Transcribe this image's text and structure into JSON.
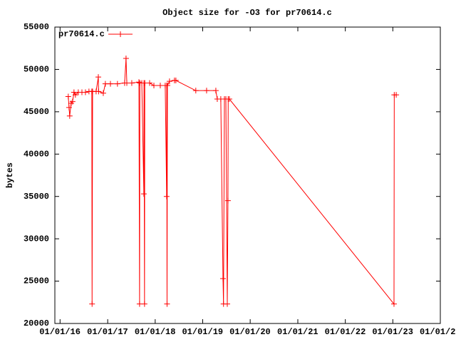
{
  "chart_data": {
    "type": "line",
    "title": "Object size for -O3 for pr70614.c",
    "y_label": "bytes",
    "legend": "top-left",
    "series": [
      {
        "name": "pr70614.c",
        "color": "#ff0000",
        "x": [
          "2016-03-04",
          "2016-03-10",
          "2016-03-15",
          "2016-03-26",
          "2016-04-06",
          "2016-04-17",
          "2016-04-28",
          "2016-05-20",
          "2016-06-17",
          "2016-07-14",
          "2016-08-10",
          "2016-09-01",
          "2016-09-03",
          "2016-09-07",
          "2016-10-04",
          "2016-10-21",
          "2016-10-23",
          "2016-11-28",
          "2016-12-14",
          "2017-01-22",
          "2017-03-17",
          "2017-05-11",
          "2017-05-22",
          "2017-05-28",
          "2017-07-05",
          "2017-08-29",
          "2017-09-03",
          "2017-09-05",
          "2017-09-20",
          "2017-10-06",
          "2017-10-07",
          "2017-10-11",
          "2017-10-13",
          "2017-11-19",
          "2017-12-22",
          "2018-02-09",
          "2018-03-19",
          "2018-03-30",
          "2018-03-31",
          "2018-04-02",
          "2018-04-05",
          "2018-04-21",
          "2018-05-29",
          "2018-06-09",
          "2018-11-09",
          "2019-01-31",
          "2019-04-12",
          "2019-04-23",
          "2019-05-20",
          "2019-06-06",
          "2019-06-10",
          "2019-06-17",
          "2019-06-28",
          "2019-07-09",
          "2019-07-14",
          "2019-07-16",
          "2019-07-25",
          "2023-01-10",
          "2023-01-12",
          "2023-01-27"
        ],
        "values": [
          46800,
          45500,
          44500,
          46000,
          46200,
          47300,
          47000,
          47300,
          47300,
          47300,
          47400,
          47400,
          22300,
          47400,
          47400,
          49100,
          47400,
          47200,
          48300,
          48300,
          48300,
          48400,
          51300,
          48400,
          48400,
          48500,
          22300,
          48400,
          48400,
          35300,
          48400,
          22300,
          48400,
          48400,
          48100,
          48100,
          48100,
          35000,
          48100,
          22300,
          48100,
          48600,
          48700,
          48700,
          47500,
          47500,
          47500,
          46500,
          46500,
          25300,
          22300,
          46500,
          46500,
          22300,
          34500,
          46500,
          46500,
          22300,
          47000,
          47000
        ]
      }
    ],
    "xlim": [
      "2015-11-22",
      "2024-01-01"
    ],
    "xticks": [
      {
        "value": "2016-01-01",
        "label": "01/01/16"
      },
      {
        "value": "2017-01-01",
        "label": "01/01/17"
      },
      {
        "value": "2018-01-01",
        "label": "01/01/18"
      },
      {
        "value": "2019-01-01",
        "label": "01/01/19"
      },
      {
        "value": "2020-01-01",
        "label": "01/01/20"
      },
      {
        "value": "2021-01-01",
        "label": "01/01/21"
      },
      {
        "value": "2022-01-01",
        "label": "01/01/22"
      },
      {
        "value": "2023-01-01",
        "label": "01/01/23"
      },
      {
        "value": "2024-01-01",
        "label": "01/01/2"
      }
    ],
    "ylim": [
      20000,
      55000
    ],
    "yticks": [
      20000,
      25000,
      30000,
      35000,
      40000,
      45000,
      50000,
      55000
    ]
  }
}
